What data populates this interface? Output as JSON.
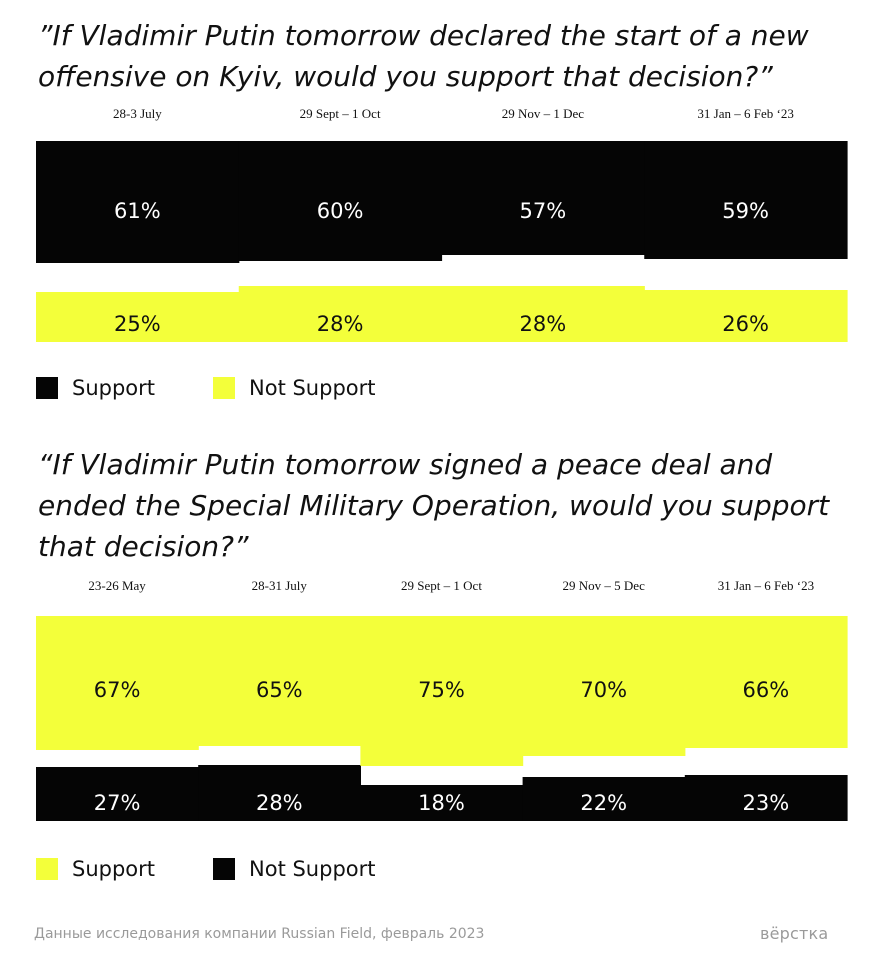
{
  "colors": {
    "black": "#050505",
    "yellow": "#f3ff3a"
  },
  "chart_data": [
    {
      "type": "bar",
      "title": "”If Vladimir Putin tomorrow declared the start of a new offensive on Kyiv, would you support that decision?”",
      "categories": [
        "28-3 July",
        "29 Sept – 1 Oct",
        "29 Nov – 1 Dec",
        "31 Jan – 6 Feb ‘23"
      ],
      "series": [
        {
          "name": "Support",
          "values": [
            61,
            60,
            57,
            59
          ],
          "labels": [
            "61%",
            "60%",
            "57%",
            "59%"
          ],
          "color": "#050505",
          "label_color": "#ffffff"
        },
        {
          "name": "Not Support",
          "values": [
            25,
            28,
            28,
            26
          ],
          "labels": [
            "25%",
            "28%",
            "28%",
            "26%"
          ],
          "color": "#f3ff3a",
          "label_color": "#111111"
        }
      ],
      "legend": [
        {
          "name": "Support",
          "color": "#050505"
        },
        {
          "name": "Not Support",
          "color": "#f3ff3a"
        }
      ]
    },
    {
      "type": "bar",
      "title": "“If Vladimir Putin tomorrow signed a peace deal and ended the Special Military Operation, would you support that decision?”",
      "categories": [
        "23-26 May",
        "28-31 July",
        "29 Sept – 1 Oct",
        "29 Nov – 5 Dec",
        "31 Jan – 6 Feb ‘23"
      ],
      "series": [
        {
          "name": "Support",
          "values": [
            67,
            65,
            75,
            70,
            66
          ],
          "labels": [
            "67%",
            "65%",
            "75%",
            "70%",
            "66%"
          ],
          "color": "#f3ff3a",
          "label_color": "#111111"
        },
        {
          "name": "Not Support",
          "values": [
            27,
            28,
            18,
            22,
            23
          ],
          "labels": [
            "27%",
            "28%",
            "18%",
            "22%",
            "23%"
          ],
          "color": "#050505",
          "label_color": "#ffffff"
        }
      ],
      "legend": [
        {
          "name": "Support",
          "color": "#f3ff3a"
        },
        {
          "name": "Not Support",
          "color": "#050505"
        }
      ]
    }
  ],
  "footer": {
    "source": "Данные исследования компании Russian Field, февраль 2023",
    "logo": "вёрстка"
  }
}
